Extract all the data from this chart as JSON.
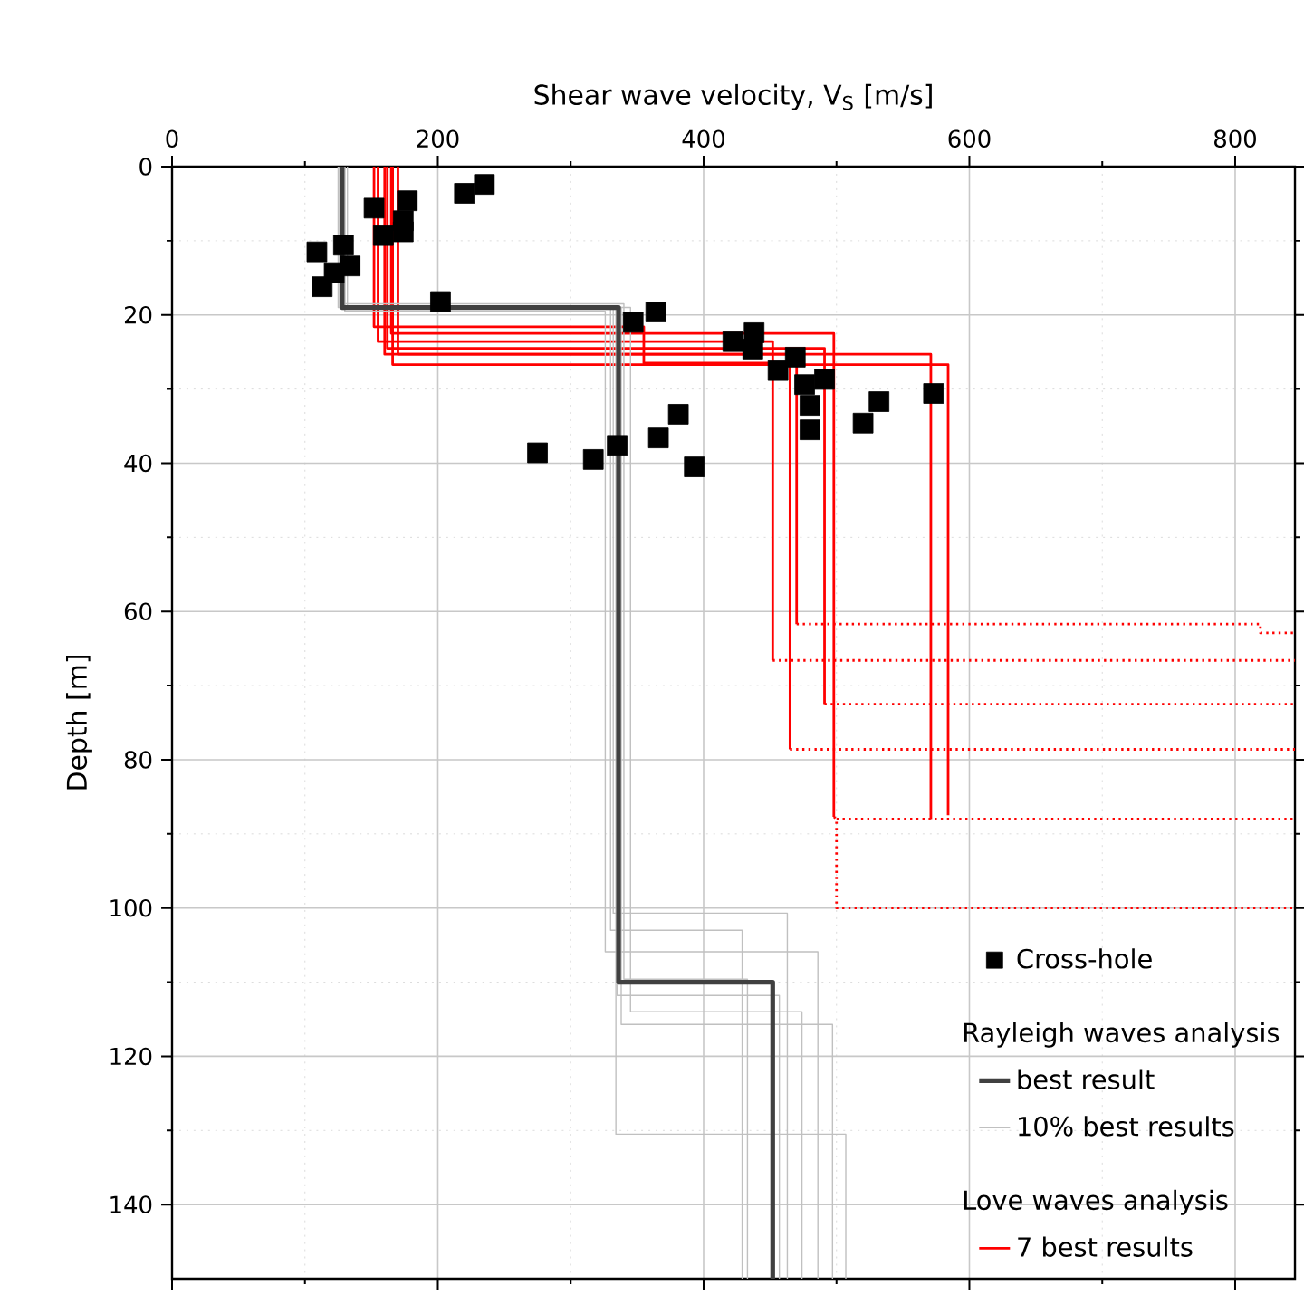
{
  "chart_data": {
    "type": "line",
    "xlabel": "Shear wave velocity, V$_{S}$ [m/s]",
    "ylabel": "Depth [m]",
    "xlim": [
      0,
      845
    ],
    "ylim": [
      150,
      0
    ],
    "xticks": [
      0,
      200,
      400,
      600,
      800
    ],
    "yticks": [
      0,
      20,
      40,
      60,
      80,
      100,
      120,
      140
    ],
    "grid": true,
    "legend": "bottom right",
    "annotations": [
      "Rayleigh waves analysis",
      "Love waves analysis"
    ],
    "series": [
      {
        "type": "scatter",
        "name": "Cross-hole",
        "color": "#000000",
        "marker": "square",
        "x": [
          152,
          177,
          174,
          159,
          174,
          109,
          129,
          134,
          113,
          122,
          202,
          220,
          235,
          347,
          364,
          422,
          381,
          366,
          335,
          317,
          275,
          393,
          438,
          437,
          469,
          456,
          476,
          491,
          480,
          480,
          532,
          520,
          573
        ],
        "values": [
          5.6,
          4.6,
          7.3,
          9.3,
          8.8,
          11.5,
          10.6,
          13.4,
          16.2,
          14.3,
          18.2,
          3.6,
          2.4,
          21,
          19.6,
          23.6,
          33.4,
          36.6,
          37.6,
          39.5,
          38.6,
          40.5,
          22.4,
          24.6,
          25.7,
          27.5,
          29.4,
          28.7,
          32.2,
          35.5,
          31.7,
          34.6,
          30.6
        ]
      },
      {
        "name": "best result",
        "color": "#404040",
        "line_style": "solid",
        "x": [
          128,
          128,
          336,
          336,
          452,
          452
        ],
        "values": [
          0,
          19,
          19,
          110,
          110,
          150
        ]
      },
      {
        "type": "line",
        "name": "10% best results",
        "color": "#c0c0c0",
        "line_style": "solid",
        "x": [
          125,
          125,
          332,
          332,
          463,
          463
        ],
        "values": [
          0,
          19,
          19,
          100.7,
          100.7,
          150
        ]
      },
      {
        "type": "line",
        "color": "#c0c0c0",
        "line_style": "solid",
        "x": [
          130,
          130,
          326,
          326,
          486,
          486
        ],
        "values": [
          0,
          19.5,
          19.5,
          105.9,
          105.9,
          150
        ]
      },
      {
        "type": "line",
        "color": "#c0c0c0",
        "line_style": "solid",
        "x": [
          128,
          128,
          340,
          340,
          433,
          433
        ],
        "values": [
          0,
          18.5,
          18.5,
          109.6,
          109.6,
          150
        ]
      },
      {
        "type": "line",
        "color": "#c0c0c0",
        "line_style": "solid",
        "x": [
          132,
          132,
          335,
          335,
          457,
          457
        ],
        "values": [
          0,
          19,
          19,
          111.8,
          111.8,
          150
        ]
      },
      {
        "type": "line",
        "color": "#c0c0c0",
        "line_style": "solid",
        "x": [
          126,
          126,
          345,
          345,
          474,
          474
        ],
        "values": [
          0,
          19,
          19,
          114,
          114,
          150
        ]
      },
      {
        "type": "line",
        "color": "#c0c0c0",
        "line_style": "solid",
        "x": [
          130,
          130,
          338,
          338,
          497,
          497
        ],
        "values": [
          0,
          19,
          19,
          115.7,
          115.7,
          150
        ]
      },
      {
        "type": "line",
        "color": "#c0c0c0",
        "line_style": "solid",
        "x": [
          128,
          128,
          334,
          334,
          507,
          507
        ],
        "values": [
          0,
          19,
          19,
          130.5,
          130.5,
          150
        ]
      },
      {
        "type": "line",
        "color": "#c0c0c0",
        "line_style": "solid",
        "x": [
          128,
          128,
          330,
          330,
          429,
          429
        ],
        "values": [
          0,
          19,
          19,
          103,
          103,
          150
        ]
      },
      {
        "type": "line",
        "name": "7 best results",
        "color": "#ff0000",
        "line_style": "solid",
        "x": [
          155,
          155,
          452,
          452
        ],
        "values": [
          0,
          23.6,
          23.6,
          66.6
        ]
      },
      {
        "type": "line",
        "color": "#ff0000",
        "line_style": "solid",
        "x": [
          160,
          160,
          465,
          465
        ],
        "values": [
          0,
          25.3,
          25.3,
          78.6
        ]
      },
      {
        "type": "line",
        "color": "#ff0000",
        "line_style": "solid",
        "x": [
          152,
          152,
          355,
          355,
          470,
          470
        ],
        "values": [
          0,
          21.6,
          21.6,
          26.5,
          26.5,
          61.7
        ]
      },
      {
        "type": "line",
        "color": "#ff0000",
        "line_style": "solid",
        "x": [
          162,
          162,
          491,
          491
        ],
        "values": [
          0,
          24.5,
          24.5,
          72.5
        ]
      },
      {
        "type": "line",
        "color": "#ff0000",
        "line_style": "solid",
        "x": [
          165,
          165,
          498,
          498
        ],
        "values": [
          0,
          22.5,
          22.5,
          87.7
        ]
      },
      {
        "type": "line",
        "color": "#ff0000",
        "line_style": "solid",
        "x": [
          170,
          170,
          571,
          571
        ],
        "values": [
          0,
          25.3,
          25.3,
          88
        ]
      },
      {
        "type": "line",
        "color": "#ff0000",
        "line_style": "solid",
        "x": [
          166,
          166,
          584,
          584
        ],
        "values": [
          0,
          26.7,
          26.7,
          87.5
        ]
      },
      {
        "type": "line",
        "color": "#ff0000",
        "line_style": "dotted",
        "x": [
          452,
          845
        ],
        "values": [
          66.6,
          66.6
        ]
      },
      {
        "type": "line",
        "color": "#ff0000",
        "line_style": "dotted",
        "x": [
          465,
          845
        ],
        "values": [
          78.6,
          78.6
        ]
      },
      {
        "type": "line",
        "color": "#ff0000",
        "line_style": "dotted",
        "x": [
          470,
          819,
          819,
          845
        ],
        "values": [
          61.7,
          61.7,
          62.9,
          62.9
        ]
      },
      {
        "type": "line",
        "color": "#ff0000",
        "line_style": "dotted",
        "x": [
          491,
          845
        ],
        "values": [
          72.5,
          72.5
        ]
      },
      {
        "type": "line",
        "color": "#ff0000",
        "line_style": "dotted",
        "x": [
          498,
          500,
          500,
          845
        ],
        "values": [
          87.7,
          88,
          100,
          100
        ]
      },
      {
        "type": "line",
        "color": "#ff0000",
        "line_style": "dotted",
        "x": [
          500,
          845
        ],
        "values": [
          88,
          88
        ]
      }
    ]
  }
}
